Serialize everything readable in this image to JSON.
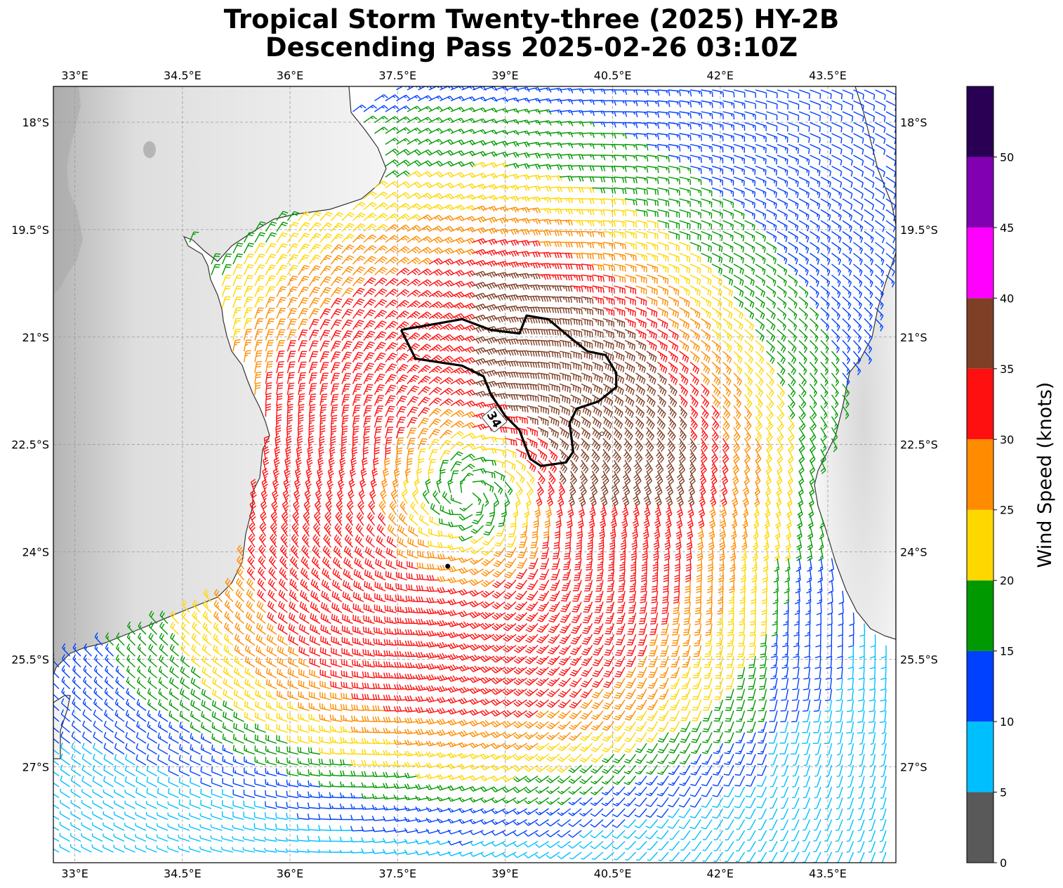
{
  "title": {
    "line1": "Tropical Storm Twenty-three (2025) HY-2B",
    "line2": "Descending Pass 2025-02-26 03:10Z"
  },
  "map": {
    "lon_range": [
      32.7,
      44.45
    ],
    "lat_range": [
      -28.34,
      -17.5
    ],
    "lon_ticks": [
      {
        "value": 33,
        "label": "33°E"
      },
      {
        "value": 34.5,
        "label": "34.5°E"
      },
      {
        "value": 36,
        "label": "36°E"
      },
      {
        "value": 37.5,
        "label": "37.5°E"
      },
      {
        "value": 39,
        "label": "39°E"
      },
      {
        "value": 40.5,
        "label": "40.5°E"
      },
      {
        "value": 42,
        "label": "42°E"
      },
      {
        "value": 43.5,
        "label": "43.5°E"
      }
    ],
    "lat_ticks": [
      {
        "value": -18,
        "label": "18°S"
      },
      {
        "value": -19.5,
        "label": "19.5°S"
      },
      {
        "value": -21,
        "label": "21°S"
      },
      {
        "value": -22.5,
        "label": "22.5°S"
      },
      {
        "value": -24,
        "label": "24°S"
      },
      {
        "value": -25.5,
        "label": "25.5°S"
      },
      {
        "value": -27,
        "label": "27°S"
      }
    ],
    "grid": true,
    "storm_center": {
      "lon": 38.5,
      "lat": -23.2
    },
    "contour_34kt_label": "34",
    "contour_34kt": [
      [
        37.55,
        -20.9
      ],
      [
        38.4,
        -20.75
      ],
      [
        38.8,
        -20.9
      ],
      [
        39.2,
        -20.95
      ],
      [
        39.3,
        -20.7
      ],
      [
        39.6,
        -20.75
      ],
      [
        39.9,
        -21.0
      ],
      [
        40.15,
        -21.2
      ],
      [
        40.4,
        -21.25
      ],
      [
        40.55,
        -21.5
      ],
      [
        40.55,
        -21.7
      ],
      [
        40.3,
        -21.9
      ],
      [
        40.0,
        -22.0
      ],
      [
        39.9,
        -22.2
      ],
      [
        39.95,
        -22.6
      ],
      [
        39.85,
        -22.75
      ],
      [
        39.5,
        -22.8
      ],
      [
        39.35,
        -22.7
      ],
      [
        39.2,
        -22.3
      ],
      [
        39.0,
        -22.1
      ],
      [
        38.8,
        -21.8
      ],
      [
        38.7,
        -21.55
      ],
      [
        38.4,
        -21.4
      ],
      [
        37.75,
        -21.3
      ],
      [
        37.55,
        -20.9
      ]
    ],
    "center_dot": {
      "lon": 38.2,
      "lat": -24.2
    },
    "small_dot": {
      "lon": 40.35,
      "lat": -22.35
    }
  },
  "colorbar": {
    "label": "Wind Speed (knots)",
    "ticks": [
      "0",
      "5",
      "10",
      "15",
      "20",
      "25",
      "30",
      "35",
      "40",
      "45",
      "50"
    ],
    "bins": [
      {
        "min": 0,
        "max": 5,
        "color": "#595959"
      },
      {
        "min": 5,
        "max": 10,
        "color": "#00bfff"
      },
      {
        "min": 10,
        "max": 15,
        "color": "#0040ff"
      },
      {
        "min": 15,
        "max": 20,
        "color": "#009900"
      },
      {
        "min": 20,
        "max": 25,
        "color": "#ffd700"
      },
      {
        "min": 25,
        "max": 30,
        "color": "#ff8c00"
      },
      {
        "min": 30,
        "max": 35,
        "color": "#ff1010"
      },
      {
        "min": 35,
        "max": 40,
        "color": "#7f3f26"
      },
      {
        "min": 40,
        "max": 45,
        "color": "#ff00ff"
      },
      {
        "min": 45,
        "max": 50,
        "color": "#8000b2"
      },
      {
        "min": 50,
        "max": 55,
        "color": "#2a0055"
      }
    ]
  }
}
